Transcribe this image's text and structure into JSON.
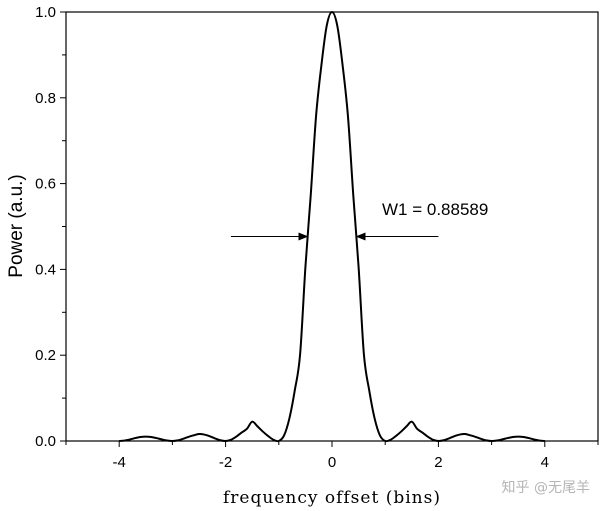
{
  "chart_data": {
    "type": "line",
    "title": "",
    "xlabel": "frequency offset (bins)",
    "ylabel": "Power (a.u.)",
    "xlim": [
      -5,
      5
    ],
    "ylim": [
      0,
      1.0
    ],
    "x_ticks": [
      -4,
      -2,
      0,
      2,
      4
    ],
    "x_tick_labels": [
      "-4",
      "-2",
      "0",
      "2",
      "4"
    ],
    "y_ticks": [
      0.0,
      0.2,
      0.4,
      0.6,
      0.8,
      1.0
    ],
    "y_tick_labels": [
      "0.0",
      "0.2",
      "0.4",
      "0.6",
      "0.8",
      "1.0"
    ],
    "grid": false,
    "series": [
      {
        "x": [
          -4.0,
          -3.9,
          -3.8,
          -3.7,
          -3.6,
          -3.5,
          -3.4,
          -3.3,
          -3.2,
          -3.1,
          -3.0,
          -2.9,
          -2.8,
          -2.7,
          -2.6,
          -2.5,
          -2.4,
          -2.3,
          -2.2,
          -2.1,
          -2.0,
          -1.9,
          -1.8,
          -1.7,
          -1.6,
          -1.5,
          -1.4,
          -1.3,
          -1.2,
          -1.1,
          -1.0,
          -0.9,
          -0.8,
          -0.7,
          -0.6,
          -0.5,
          -0.4,
          -0.3,
          -0.2,
          -0.1,
          0.0,
          0.1,
          0.2,
          0.3,
          0.4,
          0.5,
          0.6,
          0.7,
          0.8,
          0.9,
          1.0,
          1.1,
          1.2,
          1.3,
          1.4,
          1.5,
          1.6,
          1.7,
          1.8,
          1.9,
          2.0,
          2.1,
          2.2,
          2.3,
          2.4,
          2.5,
          2.6,
          2.7,
          2.8,
          2.9,
          3.0,
          3.1,
          3.2,
          3.3,
          3.4,
          3.5,
          3.6,
          3.7,
          3.8,
          3.9,
          4.0
        ],
        "y": [
          0.0,
          0.001,
          0.0035,
          0.0068,
          0.0094,
          0.0103,
          0.0093,
          0.0068,
          0.0037,
          0.0011,
          0.0,
          0.0014,
          0.005,
          0.0095,
          0.0132,
          0.0162,
          0.015,
          0.0113,
          0.006,
          0.0018,
          0.0,
          0.0028,
          0.0101,
          0.0196,
          0.0283,
          0.045,
          0.034,
          0.022,
          0.0115,
          0.0029,
          0.0,
          0.0132,
          0.0532,
          0.1178,
          0.2014,
          0.4053,
          0.5728,
          0.7568,
          0.8751,
          0.9675,
          1.0,
          0.9675,
          0.8751,
          0.7568,
          0.5728,
          0.4053,
          0.2014,
          0.1178,
          0.0532,
          0.0132,
          0.0,
          0.0029,
          0.0115,
          0.022,
          0.034,
          0.045,
          0.0283,
          0.0196,
          0.0101,
          0.0028,
          0.0,
          0.0018,
          0.006,
          0.0113,
          0.015,
          0.0162,
          0.0132,
          0.0095,
          0.005,
          0.0014,
          0.0,
          0.0011,
          0.0037,
          0.0068,
          0.0093,
          0.0103,
          0.0094,
          0.0068,
          0.0035,
          0.001,
          0.0
        ]
      }
    ],
    "annotation": {
      "text": "W1 = 0.88589",
      "level": 0.5,
      "left_x": -0.443,
      "right_x": 0.443
    }
  },
  "watermark": "知乎 @无尾羊"
}
